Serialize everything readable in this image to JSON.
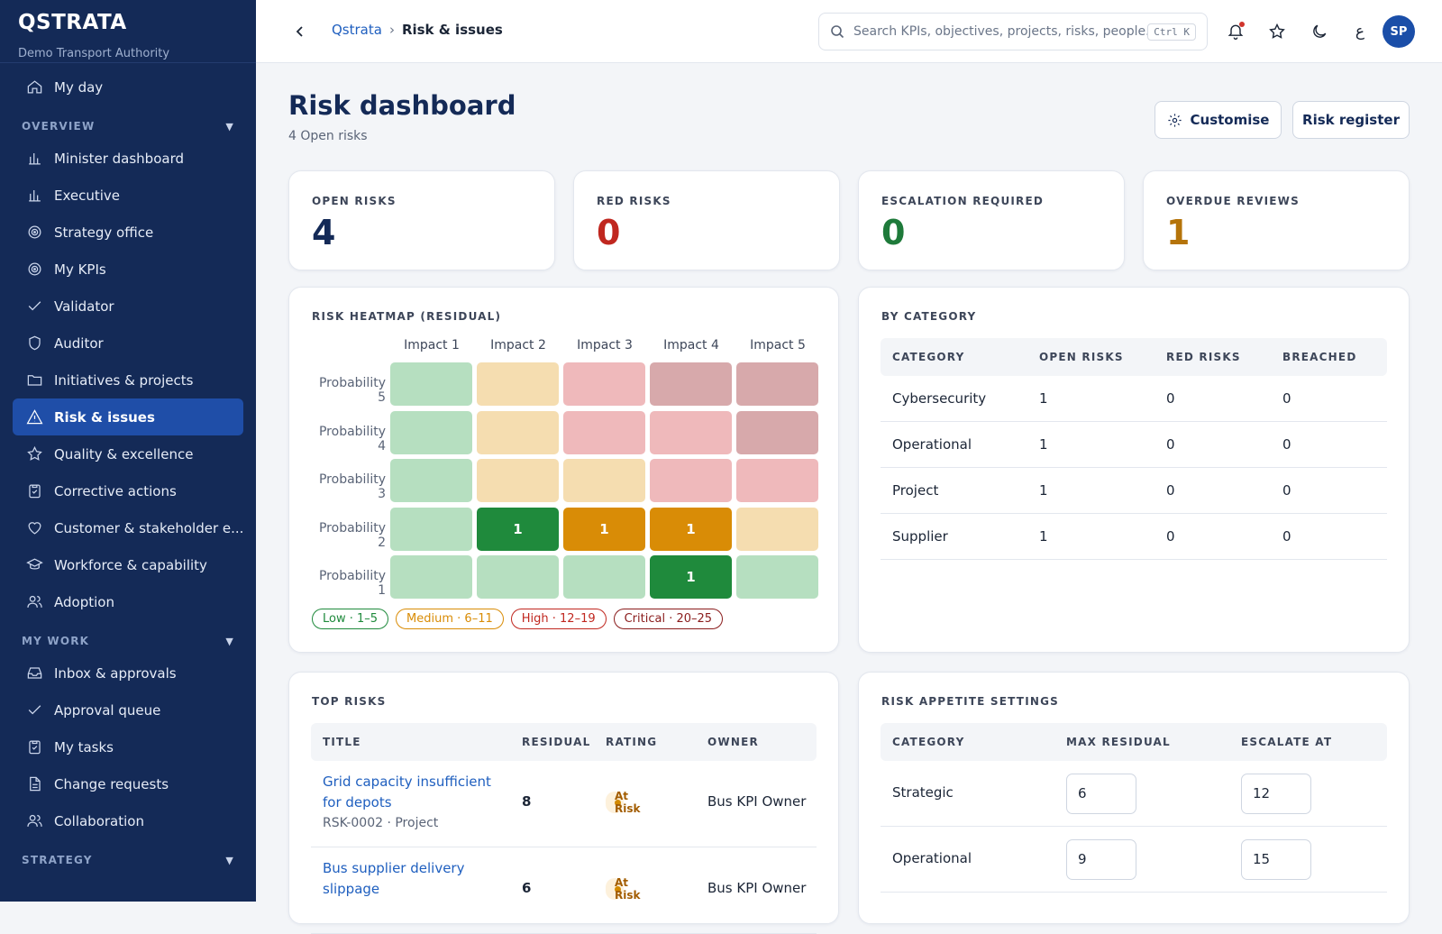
{
  "brand": {
    "name": "QSTRATA",
    "org": "Demo Transport Authority"
  },
  "sidebar": {
    "top_items": [
      {
        "label": "My day",
        "icon": "home-icon"
      }
    ],
    "overview_title": "OVERVIEW",
    "overview_items": [
      {
        "label": "Minister dashboard",
        "icon": "bar-chart-icon"
      },
      {
        "label": "Executive",
        "icon": "bar-chart-icon"
      },
      {
        "label": "Strategy office",
        "icon": "target-icon"
      },
      {
        "label": "My KPIs",
        "icon": "target-icon"
      },
      {
        "label": "Validator",
        "icon": "check-icon"
      },
      {
        "label": "Auditor",
        "icon": "shield-icon"
      },
      {
        "label": "Initiatives & projects",
        "icon": "folder-icon"
      },
      {
        "label": "Risk & issues",
        "icon": "warning-icon",
        "active": true
      },
      {
        "label": "Quality & excellence",
        "icon": "star-icon"
      },
      {
        "label": "Corrective actions",
        "icon": "clipboard-check-icon"
      },
      {
        "label": "Customer & stakeholder e...",
        "icon": "heart-icon"
      },
      {
        "label": "Workforce & capability",
        "icon": "graduation-cap-icon"
      },
      {
        "label": "Adoption",
        "icon": "users-icon"
      }
    ],
    "mywork_title": "MY WORK",
    "mywork_items": [
      {
        "label": "Inbox & approvals",
        "icon": "inbox-icon"
      },
      {
        "label": "Approval queue",
        "icon": "check-icon"
      },
      {
        "label": "My tasks",
        "icon": "clipboard-check-icon"
      },
      {
        "label": "Change requests",
        "icon": "document-icon"
      },
      {
        "label": "Collaboration",
        "icon": "users-icon"
      }
    ],
    "strategy_title": "STRATEGY"
  },
  "topbar": {
    "crumb_root": "Qstrata",
    "crumb_sep": "›",
    "crumb_current": "Risk & issues",
    "search_placeholder": "Search KPIs, objectives, projects, risks, people...",
    "search_shortcut": "Ctrl K",
    "lang_label": "ع",
    "avatar_initials": "SP"
  },
  "page": {
    "title": "Risk dashboard",
    "subtitle": "4 Open risks",
    "customise_label": "Customise",
    "register_label": "Risk register"
  },
  "stats": [
    {
      "label": "OPEN RISKS",
      "value": "4",
      "color": "#142a57"
    },
    {
      "label": "RED RISKS",
      "value": "0",
      "color": "#c0271f"
    },
    {
      "label": "ESCALATION REQUIRED",
      "value": "0",
      "color": "#1e7a3a"
    },
    {
      "label": "OVERDUE REVIEWS",
      "value": "1",
      "color": "#b5740a"
    }
  ],
  "heatmap": {
    "title": "RISK HEATMAP (RESIDUAL)",
    "impacts": [
      "Impact 1",
      "Impact 2",
      "Impact 3",
      "Impact 4",
      "Impact 5"
    ],
    "rows": [
      {
        "label": "Probability 5",
        "cells": [
          {
            "level": "low",
            "count": ""
          },
          {
            "level": "medium",
            "count": ""
          },
          {
            "level": "high",
            "count": ""
          },
          {
            "level": "critical",
            "count": ""
          },
          {
            "level": "critical",
            "count": ""
          }
        ]
      },
      {
        "label": "Probability 4",
        "cells": [
          {
            "level": "low",
            "count": ""
          },
          {
            "level": "medium",
            "count": ""
          },
          {
            "level": "high",
            "count": ""
          },
          {
            "level": "high",
            "count": ""
          },
          {
            "level": "critical",
            "count": ""
          }
        ]
      },
      {
        "label": "Probability 3",
        "cells": [
          {
            "level": "low",
            "count": ""
          },
          {
            "level": "medium",
            "count": ""
          },
          {
            "level": "medium",
            "count": ""
          },
          {
            "level": "high",
            "count": ""
          },
          {
            "level": "high",
            "count": ""
          }
        ]
      },
      {
        "label": "Probability 2",
        "cells": [
          {
            "level": "low",
            "count": ""
          },
          {
            "level": "low",
            "count": "1"
          },
          {
            "level": "medium",
            "count": "1"
          },
          {
            "level": "medium",
            "count": "1"
          },
          {
            "level": "medium",
            "count": ""
          }
        ]
      },
      {
        "label": "Probability 1",
        "cells": [
          {
            "level": "low",
            "count": ""
          },
          {
            "level": "low",
            "count": ""
          },
          {
            "level": "low",
            "count": ""
          },
          {
            "level": "low",
            "count": "1"
          },
          {
            "level": "low",
            "count": ""
          }
        ]
      }
    ],
    "colors": {
      "low": "#b6dfc0",
      "low_active": "#1f8a3c",
      "medium": "#f5ddb0",
      "medium_active": "#d98c06",
      "high": "#efb9bb",
      "high_active": "#c0271f",
      "critical": "#d7a9ab",
      "critical_active": "#8a1c1c"
    },
    "legend": [
      {
        "label": "Low · 1–5",
        "color": "#1f8a3c"
      },
      {
        "label": "Medium · 6–11",
        "color": "#d98c06"
      },
      {
        "label": "High · 12–19",
        "color": "#c0271f"
      },
      {
        "label": "Critical · 20–25",
        "color": "#8a1c1c"
      }
    ]
  },
  "by_category": {
    "title": "BY CATEGORY",
    "columns": [
      "CATEGORY",
      "OPEN RISKS",
      "RED RISKS",
      "BREACHED"
    ],
    "rows": [
      [
        "Cybersecurity",
        "1",
        "0",
        "0"
      ],
      [
        "Operational",
        "1",
        "0",
        "0"
      ],
      [
        "Project",
        "1",
        "0",
        "0"
      ],
      [
        "Supplier",
        "1",
        "0",
        "0"
      ]
    ]
  },
  "top_risks": {
    "title": "TOP RISKS",
    "columns": [
      "TITLE",
      "RESIDUAL",
      "RATING",
      "OWNER"
    ],
    "rows": [
      {
        "title": "Grid capacity insufficient for depots",
        "meta": "RSK-0002 · Project",
        "residual": "8",
        "rating": "At Risk",
        "owner": "Bus KPI Owner"
      },
      {
        "title": "Bus supplier delivery slippage",
        "meta": "",
        "residual": "6",
        "rating": "At Risk",
        "owner": "Bus KPI Owner"
      }
    ]
  },
  "appetite": {
    "title": "RISK APPETITE SETTINGS",
    "columns": [
      "CATEGORY",
      "MAX RESIDUAL",
      "ESCALATE AT"
    ],
    "rows": [
      {
        "category": "Strategic",
        "max": "6",
        "escalate": "12"
      },
      {
        "category": "Operational",
        "max": "9",
        "escalate": "15"
      }
    ]
  }
}
